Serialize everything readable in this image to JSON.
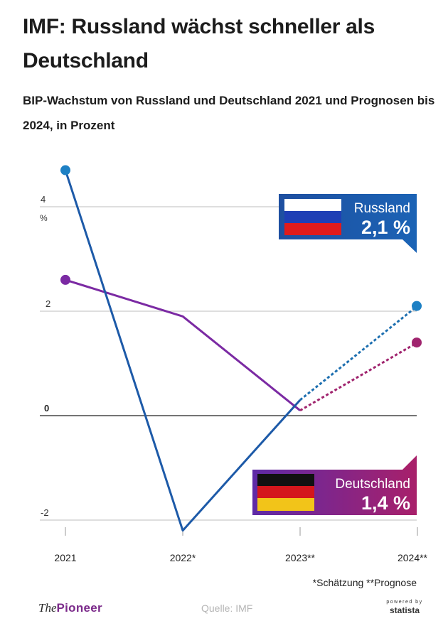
{
  "header": {
    "title": "IMF: Russland wächst schneller als Deutschland",
    "subtitle": "BIP-Wachstum von Russland und Deutschland 2021 und Prognosen bis 2024, in Prozent"
  },
  "chart_data": {
    "type": "line",
    "title": "IMF: Russland wächst schneller als Deutschland",
    "subtitle": "BIP-Wachstum von Russland und Deutschland 2021 und Prognosen bis 2024, in Prozent",
    "x": [
      "2021",
      "2022*",
      "2023**",
      "2024**"
    ],
    "ylabel": "%",
    "ylim": [
      -2.2,
      4.7
    ],
    "yticks": [
      -2,
      0,
      2,
      4
    ],
    "ytick_labels": [
      "-2",
      "0",
      "2",
      "4"
    ],
    "grid": true,
    "series": [
      {
        "name": "Russland",
        "values": [
          4.7,
          -2.2,
          0.3,
          2.1
        ],
        "color": "#1d6fb0",
        "forecast_from_index": 2,
        "label_value": "2,1 %"
      },
      {
        "name": "Deutschland",
        "values": [
          2.6,
          1.9,
          0.1,
          1.4
        ],
        "color": "#7b2aa3",
        "forecast_from_index": 2,
        "label_value": "1,4 %"
      }
    ],
    "annotations": [
      "*Schätzung **Prognose"
    ]
  },
  "footer": {
    "footnote": "*Schätzung **Prognose",
    "source": "Quelle: IMF",
    "brand_prefix": "The",
    "brand_name": "Pioneer",
    "statista_small": "powered by",
    "statista_name": "statista"
  },
  "colors": {
    "russia_blue": "#1d6fb0",
    "russia_box": "#1e56a0",
    "germany_purple": "#7b2aa3",
    "germany_magenta": "#a0246e",
    "grid": "#bdbdbd"
  }
}
